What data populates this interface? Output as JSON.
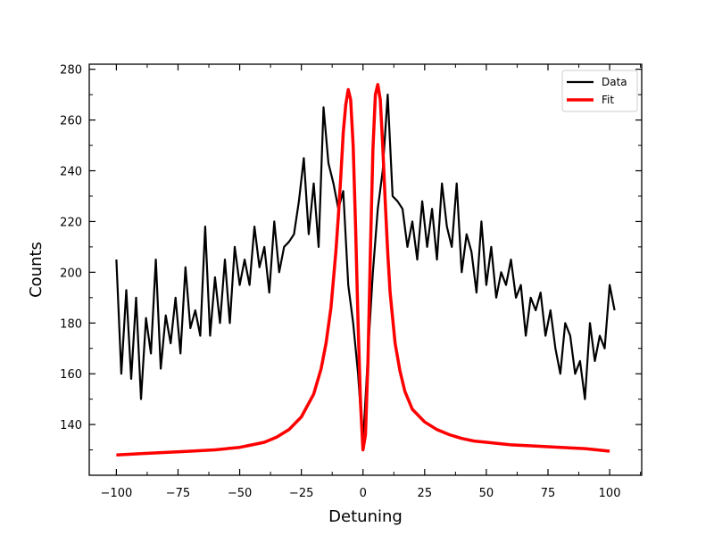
{
  "chart_data": {
    "type": "line",
    "title": "",
    "xlabel": "Detuning",
    "ylabel": "Counts",
    "xlim": [
      -111,
      113
    ],
    "ylim": [
      120,
      282
    ],
    "x_ticks": [
      -100,
      -75,
      -50,
      -25,
      0,
      25,
      50,
      75,
      100
    ],
    "y_ticks": [
      140,
      160,
      180,
      200,
      220,
      240,
      260,
      280
    ],
    "tick_direction": "in",
    "grid": false,
    "legend": {
      "position": "top-right",
      "entries": [
        "Data",
        "Fit"
      ]
    },
    "colors": {
      "Data": "#000000",
      "Fit": "#ff0000"
    },
    "series": [
      {
        "name": "Data",
        "x": [
          -100,
          -98,
          -96,
          -94,
          -92,
          -90,
          -88,
          -86,
          -84,
          -82,
          -80,
          -78,
          -76,
          -74,
          -72,
          -70,
          -68,
          -66,
          -64,
          -62,
          -60,
          -58,
          -56,
          -54,
          -52,
          -50,
          -48,
          -46,
          -44,
          -42,
          -40,
          -38,
          -36,
          -34,
          -32,
          -30,
          -28,
          -26,
          -24,
          -22,
          -20,
          -18,
          -16,
          -14,
          -12,
          -10,
          -8,
          -6,
          -4,
          -2,
          0,
          2,
          4,
          6,
          8,
          10,
          12,
          14,
          16,
          18,
          20,
          22,
          24,
          26,
          28,
          30,
          32,
          34,
          36,
          38,
          40,
          42,
          44,
          46,
          48,
          50,
          52,
          54,
          56,
          58,
          60,
          62,
          64,
          66,
          68,
          70,
          72,
          74,
          76,
          78,
          80,
          82,
          84,
          86,
          88,
          90,
          92,
          94,
          96,
          98,
          100,
          102
        ],
        "y": [
          205,
          160,
          193,
          158,
          190,
          150,
          182,
          168,
          205,
          162,
          183,
          172,
          190,
          168,
          202,
          178,
          185,
          175,
          218,
          175,
          198,
          180,
          205,
          180,
          210,
          195,
          205,
          195,
          218,
          202,
          210,
          192,
          220,
          200,
          210,
          212,
          215,
          228,
          245,
          215,
          235,
          210,
          265,
          243,
          235,
          225,
          232,
          195,
          180,
          160,
          132,
          168,
          200,
          225,
          240,
          270,
          230,
          228,
          225,
          210,
          220,
          205,
          228,
          210,
          225,
          205,
          235,
          218,
          210,
          235,
          200,
          215,
          208,
          192,
          220,
          195,
          210,
          190,
          200,
          195,
          205,
          190,
          195,
          175,
          190,
          185,
          192,
          175,
          185,
          170,
          160,
          180,
          175,
          160,
          165,
          150,
          180,
          165,
          175,
          170,
          195,
          185
        ]
      },
      {
        "name": "Fit",
        "x": [
          -100,
          -90,
          -80,
          -70,
          -60,
          -50,
          -45,
          -40,
          -35,
          -30,
          -25,
          -20,
          -17,
          -15,
          -13,
          -11,
          -10,
          -9,
          -8,
          -7,
          -6,
          -5,
          -4,
          -3,
          -2,
          -1,
          0,
          1,
          2,
          3,
          4,
          5,
          6,
          7,
          8,
          9,
          10,
          11,
          13,
          15,
          17,
          20,
          25,
          30,
          35,
          40,
          45,
          50,
          60,
          70,
          80,
          90,
          100
        ],
        "y": [
          128,
          128.5,
          129,
          129.5,
          130,
          131,
          132,
          133,
          135,
          138,
          143,
          152,
          162,
          172,
          186,
          208,
          222,
          238,
          255,
          266,
          272,
          268,
          250,
          218,
          180,
          148,
          130,
          136,
          165,
          208,
          248,
          270,
          274,
          268,
          250,
          228,
          208,
          192,
          172,
          161,
          153,
          146,
          141,
          138,
          136,
          134.5,
          133.5,
          133,
          132,
          131.5,
          131,
          130.5,
          129.5
        ]
      }
    ]
  }
}
